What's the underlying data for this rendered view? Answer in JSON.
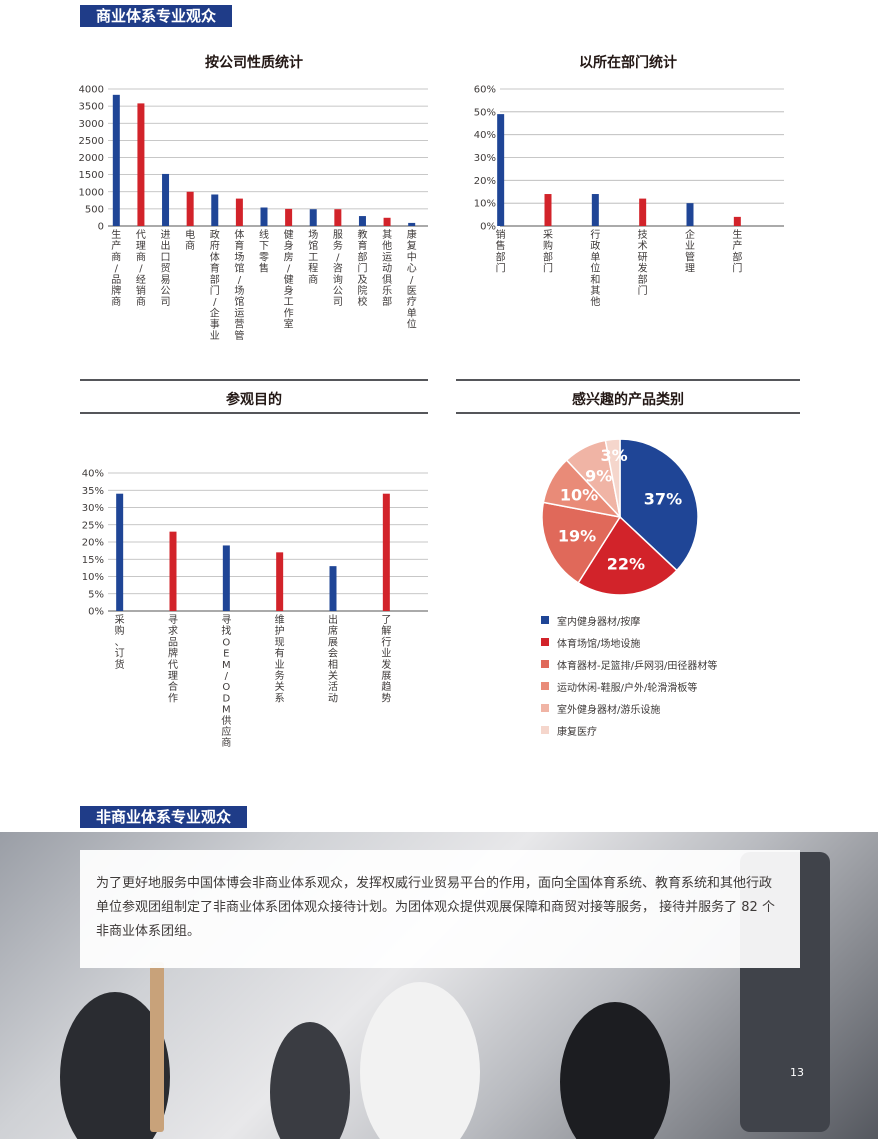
{
  "section1": {
    "title": "商业体系专业观众"
  },
  "section2": {
    "title": "非商业体系专业观众"
  },
  "body_text": "为了更好地服务中国体博会非商业体系观众，发挥权威行业贸易平台的作用，面向全国体育系统、教育系统和其他行政单位参观团组制定了非商业体系团体观众接待计划。为团体观众提供观展保障和商贸对接等服务， 接待并服务了 82 个非商业体系团组。",
  "page_number": "13",
  "colors": {
    "blue": "#1f4596",
    "red": "#d2232a",
    "pie": [
      "#1f4596",
      "#d2232a",
      "#e0695a",
      "#e98b78",
      "#f0b4a5",
      "#f5d6cc"
    ]
  },
  "chart_data": [
    {
      "type": "bar",
      "title": "按公司性质统计",
      "categories": [
        "生产商/品牌商",
        "代理商/经销商",
        "进出口贸易公司",
        "电商",
        "政府体育部门/企事业",
        "体育场馆/场馆运营管",
        "线下零售",
        "健身房/健身工作室",
        "场馆工程商",
        "服务/咨询公司",
        "教育部门及院校",
        "其他运动俱乐部",
        "康复中心/医疗单位"
      ],
      "values": [
        3830,
        3580,
        1520,
        1000,
        920,
        800,
        540,
        500,
        490,
        490,
        290,
        240,
        90
      ],
      "yticks": [
        "4000",
        "3500",
        "3000",
        "2500",
        "2000",
        "1500",
        "1000",
        "500",
        "0"
      ],
      "ylim": [
        0,
        4000
      ],
      "grid": true
    },
    {
      "type": "bar",
      "title": "以所在部门统计",
      "categories": [
        "销售部门",
        "采购部门",
        "行政单位和其他",
        "技术研发部门",
        "企业管理",
        "生产部门"
      ],
      "values": [
        49,
        14,
        14,
        12,
        10,
        4
      ],
      "yticks": [
        "60%",
        "50%",
        "40%",
        "30%",
        "20%",
        "10%",
        "0%"
      ],
      "ylim": [
        0,
        60
      ],
      "grid": true
    },
    {
      "type": "bar",
      "title": "参观目的",
      "categories": [
        "采购、订货",
        "寻求品牌代理合作",
        "寻找OEM/ODM供应商",
        "维护现有业务关系",
        "出席展会相关活动",
        "了解行业发展趋势"
      ],
      "values": [
        34,
        23,
        19,
        17,
        13,
        34
      ],
      "yticks": [
        "40%",
        "35%",
        "30%",
        "25%",
        "20%",
        "15%",
        "10%",
        "5%",
        "0%"
      ],
      "ylim": [
        0,
        40
      ],
      "grid": true
    },
    {
      "type": "pie",
      "title": "感兴趣的产品类别",
      "categories": [
        "室内健身器材/按摩",
        "体育场馆/场地设施",
        "体育器材-足篮排/乒网羽/田径器材等",
        "运动休闲-鞋服/户外/轮滑滑板等",
        "室外健身器材/游乐设施",
        "康复医疗"
      ],
      "values": [
        37,
        22,
        19,
        10,
        9,
        3
      ],
      "labels": [
        "37%",
        "22%",
        "19%",
        "10%",
        "9%",
        "3%"
      ]
    }
  ]
}
